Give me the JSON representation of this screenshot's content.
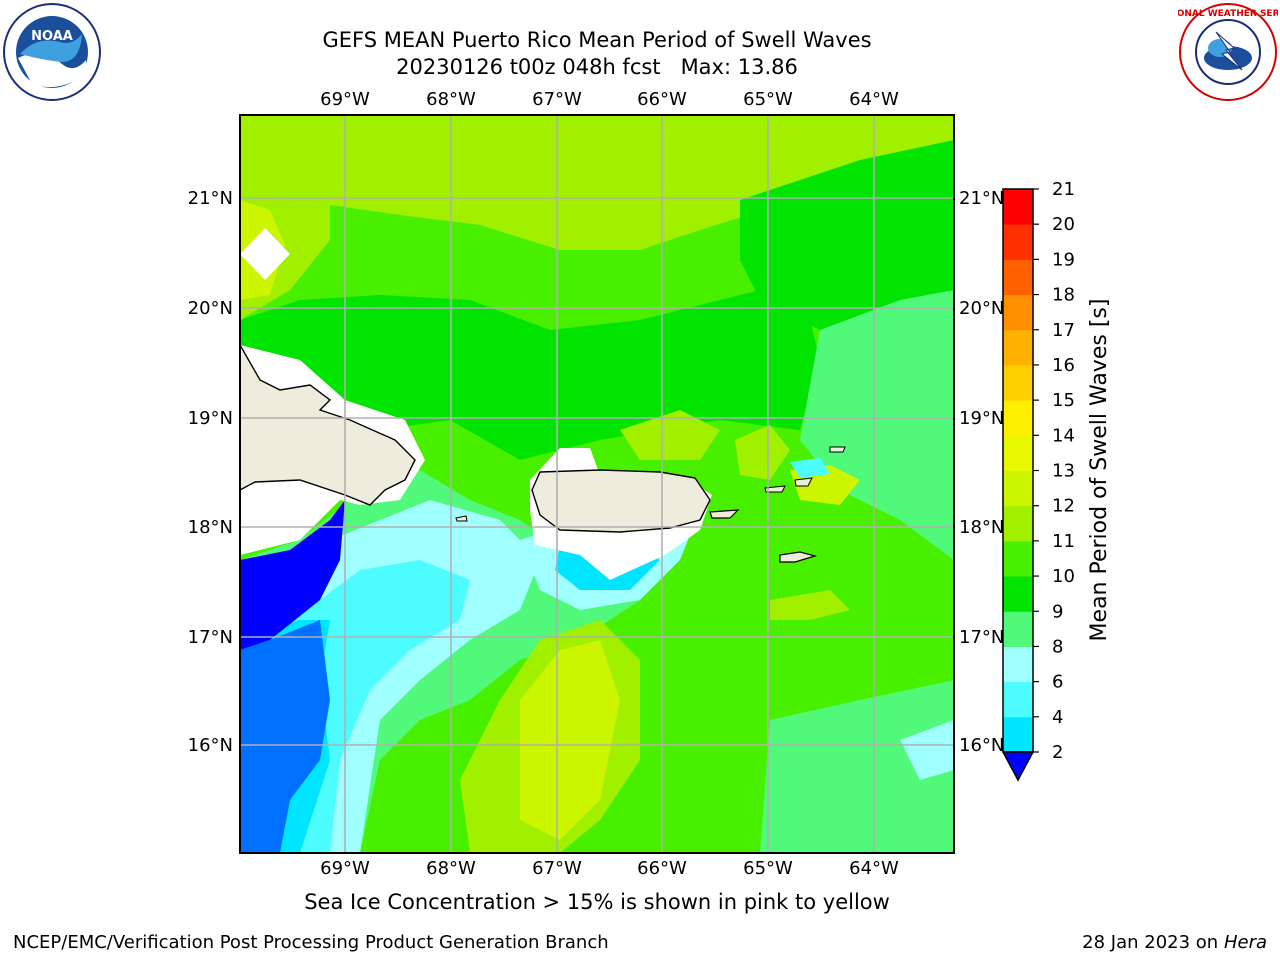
{
  "header": {
    "title_line1": "GEFS MEAN Puerto Rico Mean Period of Swell Waves",
    "title_line2": "20230126 t00z 048h fcst   Max: 13.86"
  },
  "logos": {
    "left": "NOAA",
    "right": "NATIONAL WEATHER SERVICE"
  },
  "map": {
    "lon_labels": [
      "69°W",
      "68°W",
      "67°W",
      "66°W",
      "65°W",
      "64°W"
    ],
    "lat_labels": [
      "21°N",
      "20°N",
      "19°N",
      "18°N",
      "17°N",
      "16°N"
    ],
    "land_color": "#eeecdc",
    "mask_color": "#ffffff"
  },
  "colorbar": {
    "label": "Mean Period of Swell Waves [s]",
    "ticks": [
      "2",
      "4",
      "6",
      "8",
      "9",
      "10",
      "11",
      "12",
      "13",
      "14",
      "15",
      "16",
      "17",
      "18",
      "19",
      "20",
      "21"
    ],
    "colors": [
      "#0070ff",
      "#00e5ff",
      "#4cfcff",
      "#a0ffff",
      "#50f97a",
      "#00e400",
      "#48f000",
      "#a0f000",
      "#ccf500",
      "#e8f800",
      "#fff000",
      "#ffcf00",
      "#ffb000",
      "#ff8f00",
      "#ff6100",
      "#ff3000",
      "#ff0000"
    ],
    "under_color": "#0000ff"
  },
  "caption": "Sea Ice Concentration > 15% is shown in pink to yellow",
  "footer": {
    "left": "NCEP/EMC/Verification Post Processing Product Generation Branch",
    "right_date": "28 Jan 2023 on ",
    "right_host": "Hera"
  }
}
